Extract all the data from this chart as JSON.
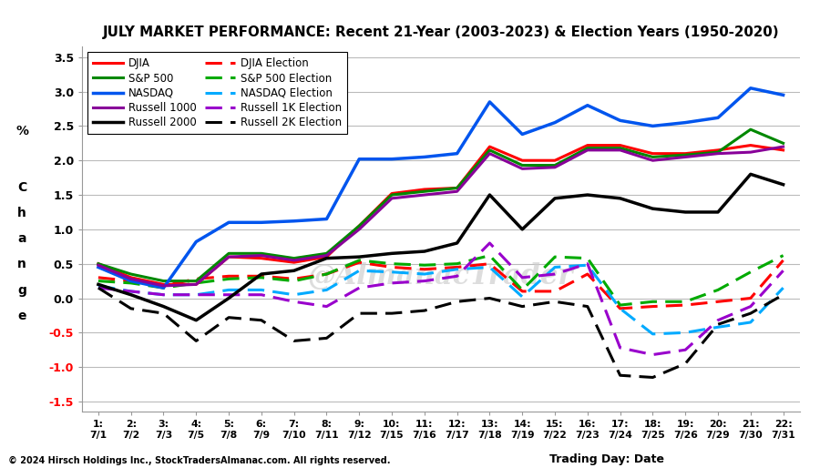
{
  "title": "JULY MARKET PERFORMANCE: Recent 21-Year (2003-2023) & Election Years (1950-2020)",
  "watermark": "@AlmanacTrader",
  "copyright": "© 2024 Hirsch Holdings Inc., StockTradersAlmanac.com. All rights reserved.",
  "xlabel": "Trading Day: Date",
  "ylim": [
    -1.65,
    3.65
  ],
  "yticks": [
    -1.5,
    -1.0,
    -0.5,
    0.0,
    0.5,
    1.0,
    1.5,
    2.0,
    2.5,
    3.0,
    3.5
  ],
  "x_labels_top": [
    "1:",
    "2:",
    "3:",
    "4:",
    "5:",
    "6:",
    "7:",
    "8:",
    "9:",
    "10:",
    "11:",
    "12:",
    "13:",
    "14:",
    "15:",
    "16:",
    "17:",
    "18:",
    "19:",
    "20:",
    "21:",
    "22:"
  ],
  "x_labels_bottom": [
    "7/1",
    "7/2",
    "7/3",
    "7/5",
    "7/8",
    "7/9",
    "7/10",
    "7/11",
    "7/12",
    "7/15",
    "7/16",
    "7/17",
    "7/18",
    "7/19",
    "7/22",
    "7/23",
    "7/24",
    "7/25",
    "7/26",
    "7/29",
    "7/30",
    "7/31"
  ],
  "DJIA": [
    0.5,
    0.3,
    0.2,
    0.2,
    0.6,
    0.58,
    0.52,
    0.6,
    1.05,
    1.52,
    1.58,
    1.6,
    2.2,
    2.0,
    2.0,
    2.22,
    2.22,
    2.1,
    2.1,
    2.15,
    2.22,
    2.15
  ],
  "SP500": [
    0.5,
    0.35,
    0.25,
    0.25,
    0.65,
    0.65,
    0.58,
    0.65,
    1.05,
    1.5,
    1.55,
    1.6,
    2.15,
    1.93,
    1.93,
    2.18,
    2.18,
    2.05,
    2.08,
    2.12,
    2.45,
    2.25
  ],
  "NASDAQ": [
    0.45,
    0.25,
    0.15,
    0.82,
    1.1,
    1.1,
    1.12,
    1.15,
    2.02,
    2.02,
    2.05,
    2.1,
    2.85,
    2.38,
    2.55,
    2.8,
    2.58,
    2.5,
    2.55,
    2.62,
    3.05,
    2.95
  ],
  "Russell1000": [
    0.48,
    0.28,
    0.18,
    0.2,
    0.6,
    0.62,
    0.55,
    0.62,
    1.0,
    1.45,
    1.5,
    1.55,
    2.1,
    1.88,
    1.9,
    2.15,
    2.15,
    2.0,
    2.05,
    2.1,
    2.12,
    2.2
  ],
  "Russell2000": [
    0.2,
    0.05,
    -0.12,
    -0.32,
    0.0,
    0.35,
    0.4,
    0.58,
    0.6,
    0.65,
    0.68,
    0.8,
    1.5,
    1.0,
    1.45,
    1.5,
    1.45,
    1.3,
    1.25,
    1.25,
    1.8,
    1.65
  ],
  "DJIA_Elec": [
    0.3,
    0.25,
    0.18,
    0.28,
    0.32,
    0.32,
    0.28,
    0.35,
    0.52,
    0.45,
    0.42,
    0.45,
    0.5,
    0.1,
    0.1,
    0.35,
    -0.15,
    -0.12,
    -0.1,
    -0.05,
    0.0,
    0.55
  ],
  "SP500_Elec": [
    0.25,
    0.22,
    0.15,
    0.22,
    0.28,
    0.3,
    0.25,
    0.35,
    0.55,
    0.5,
    0.48,
    0.5,
    0.62,
    0.12,
    0.6,
    0.58,
    -0.1,
    -0.05,
    -0.05,
    0.12,
    0.38,
    0.62
  ],
  "NASDAQ_Elec": [
    0.18,
    0.1,
    0.05,
    0.05,
    0.12,
    0.12,
    0.05,
    0.12,
    0.4,
    0.38,
    0.35,
    0.42,
    0.45,
    0.02,
    0.45,
    0.48,
    -0.15,
    -0.52,
    -0.5,
    -0.42,
    -0.35,
    0.15
  ],
  "R1K_Elec": [
    0.15,
    0.1,
    0.05,
    0.05,
    0.05,
    0.05,
    -0.05,
    -0.12,
    0.15,
    0.22,
    0.25,
    0.32,
    0.8,
    0.3,
    0.35,
    0.5,
    -0.72,
    -0.82,
    -0.75,
    -0.32,
    -0.12,
    0.4
  ],
  "R2K_Elec": [
    0.15,
    -0.15,
    -0.22,
    -0.62,
    -0.28,
    -0.32,
    -0.62,
    -0.58,
    -0.22,
    -0.22,
    -0.18,
    -0.05,
    0.0,
    -0.12,
    -0.05,
    -0.12,
    -1.12,
    -1.15,
    -0.95,
    -0.38,
    -0.22,
    0.05
  ],
  "colors": {
    "DJIA": "#FF0000",
    "SP500": "#008800",
    "NASDAQ": "#0055EE",
    "Russell1000": "#880099",
    "Russell2000": "#000000",
    "DJIA_Elec": "#FF0000",
    "SP500_Elec": "#00AA00",
    "NASDAQ_Elec": "#00AAFF",
    "R1K_Elec": "#9900CC",
    "R2K_Elec": "#000000"
  },
  "bg_color": "#FFFFFF",
  "grid_color": "#BBBBBB",
  "legend_col1": [
    "DJIA",
    "NASDAQ",
    "Russell 2000",
    "S&P 500 Election",
    "Russell 1K Election"
  ],
  "legend_col2": [
    "S&P 500",
    "Russell 1000",
    "DJIA Election",
    "NASDAQ Election",
    "Russell 2K Election"
  ],
  "legend_solid": [
    "DJIA",
    "NASDAQ",
    "Russell 2000",
    "S&P 500",
    "Russell 1000"
  ],
  "legend_dashed": [
    "S&P 500 Election",
    "Russell 1K Election",
    "DJIA Election",
    "NASDAQ Election",
    "Russell 2K Election"
  ]
}
